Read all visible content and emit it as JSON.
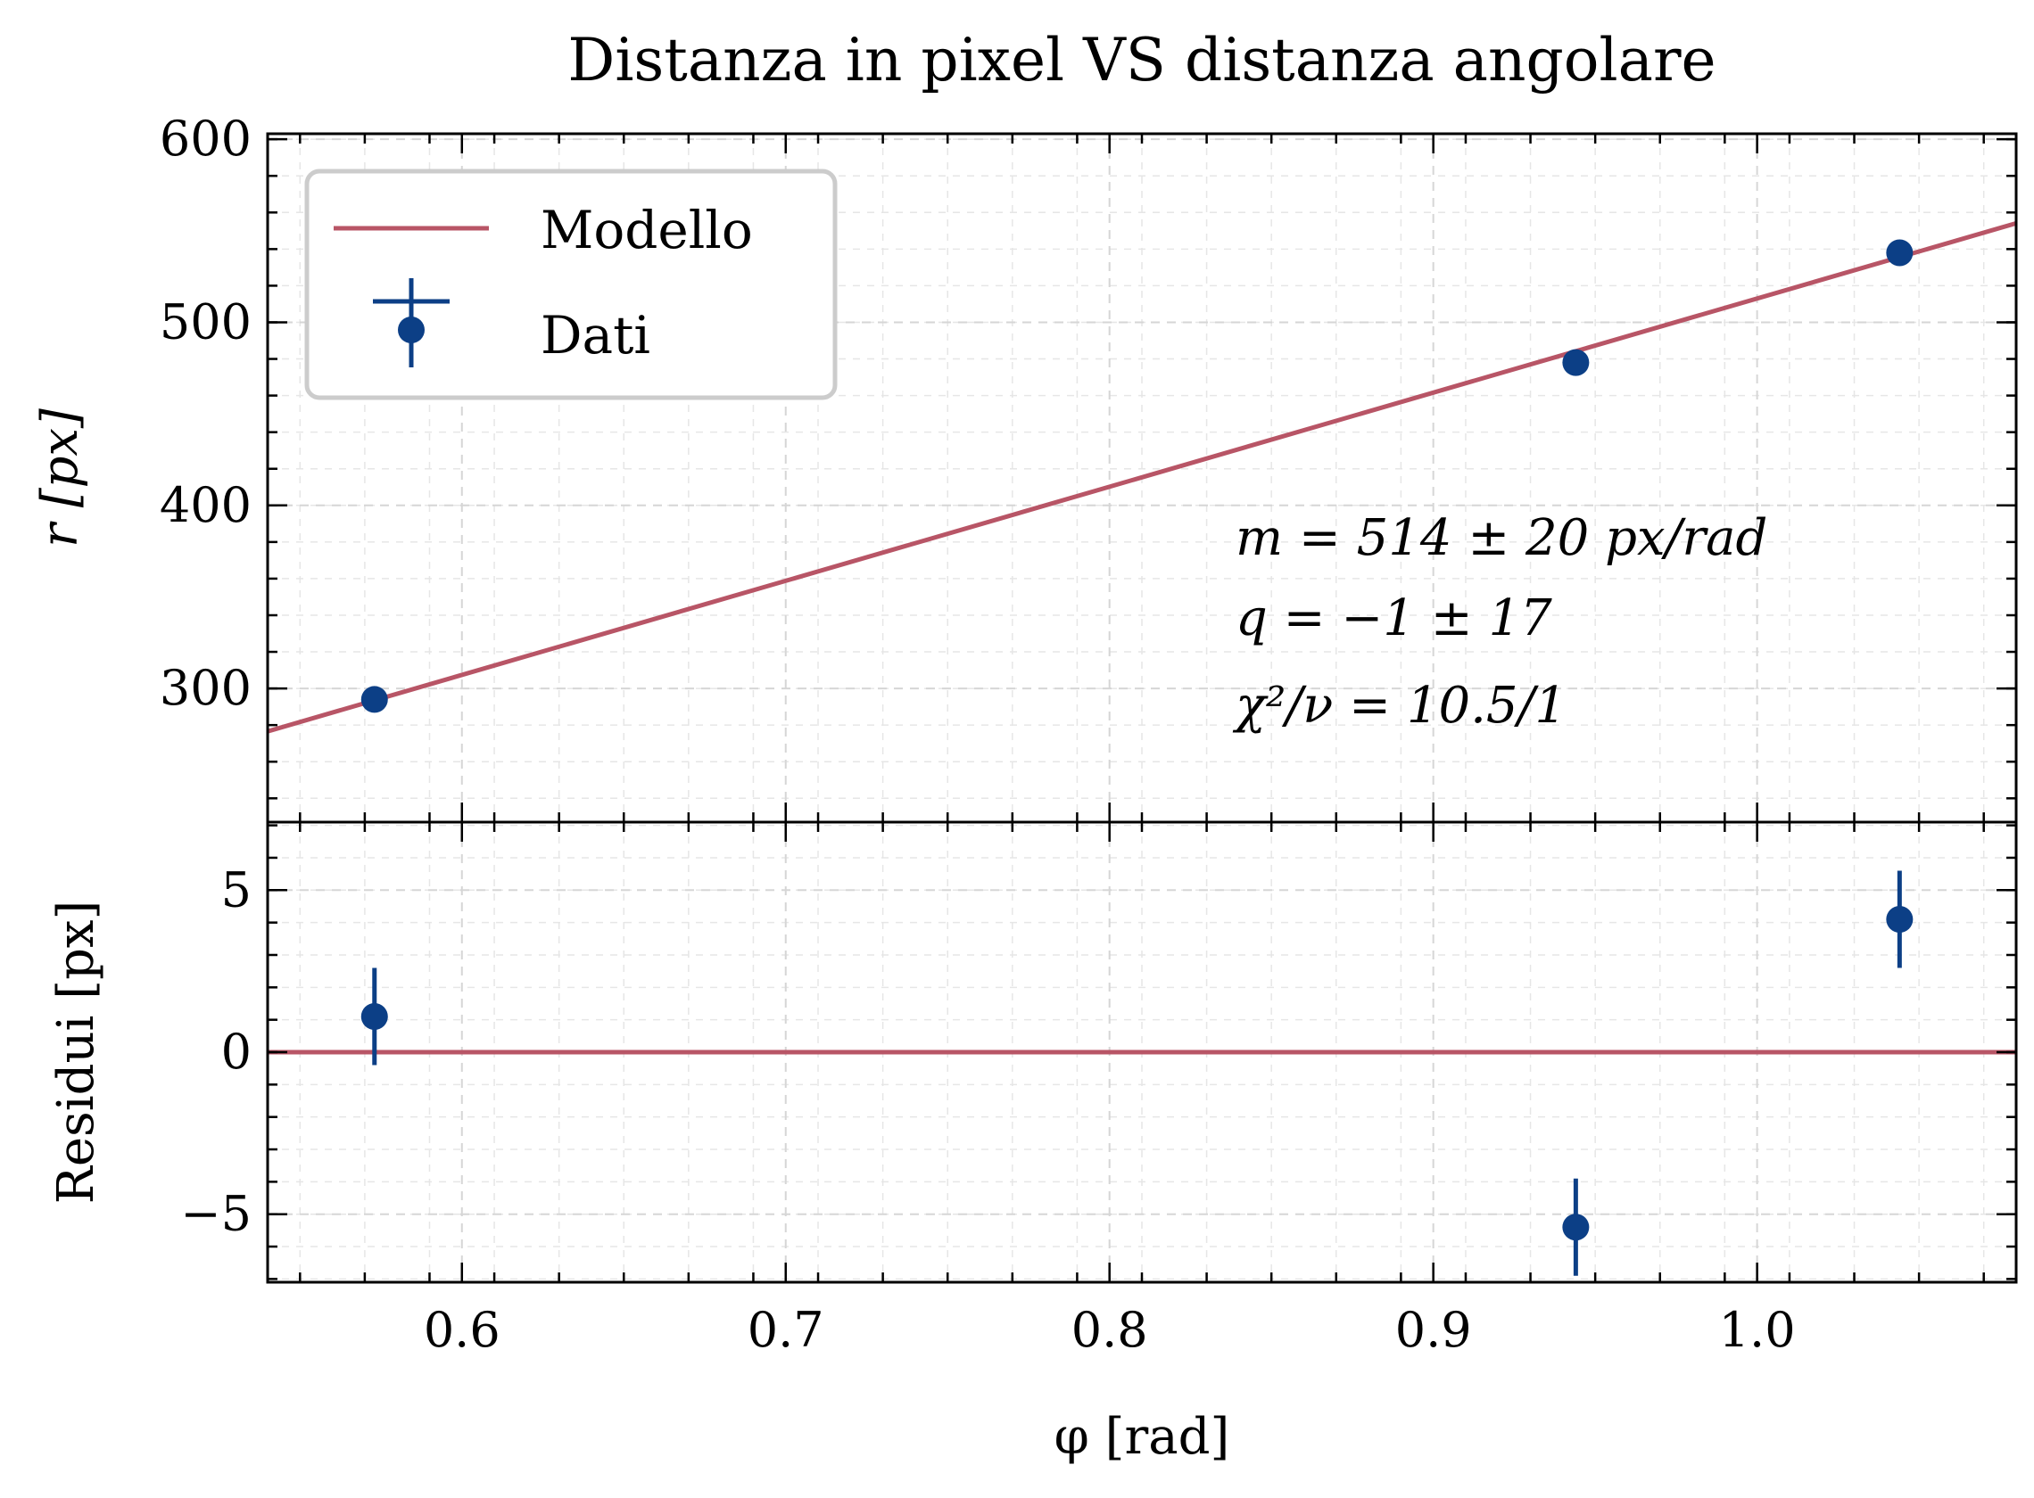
{
  "chart_data": [
    {
      "type": "scatter",
      "panel": "main",
      "title": "Distanza in pixel VS distanza angolare",
      "xlabel": "φ [rad]",
      "ylabel": "r [px]",
      "xlim": [
        0.54,
        1.08
      ],
      "ylim": [
        227,
        603
      ],
      "x_ticks": [
        0.6,
        0.7,
        0.8,
        0.9,
        1.0
      ],
      "x_tick_labels": [
        "0.6",
        "0.7",
        "0.8",
        "0.9",
        "1.0"
      ],
      "y_ticks": [
        300,
        400,
        500,
        600
      ],
      "y_tick_labels": [
        "300",
        "400",
        "500",
        "600"
      ],
      "grid": true,
      "legend": {
        "placement": "top-left",
        "entries": [
          "Modello",
          "Dati"
        ]
      },
      "series": [
        {
          "name": "Dati",
          "kind": "errorbar-points",
          "color": "#0C3F86",
          "x": [
            0.573,
            0.944,
            1.044
          ],
          "y": [
            294,
            478,
            538
          ]
        },
        {
          "name": "Modello",
          "kind": "line",
          "color": "#B85566",
          "slope": 514,
          "intercept": -1
        }
      ],
      "annotations": [
        "m = 514 ± 20 px/rad",
        "q = −1 ± 17",
        "χ²/ν = 10.5/1"
      ]
    },
    {
      "type": "scatter",
      "panel": "residuals",
      "xlabel": "φ [rad]",
      "ylabel": "Residui [px]",
      "xlim": [
        0.54,
        1.08
      ],
      "ylim": [
        -7.1,
        7.1
      ],
      "x_ticks": [
        0.6,
        0.7,
        0.8,
        0.9,
        1.0
      ],
      "x_tick_labels": [
        "0.6",
        "0.7",
        "0.8",
        "0.9",
        "1.0"
      ],
      "y_ticks": [
        -5,
        0,
        5
      ],
      "y_tick_labels": [
        "−5",
        "0",
        "5"
      ],
      "grid": true,
      "series": [
        {
          "kind": "errorbar-points",
          "color": "#0C3F86",
          "x": [
            0.573,
            0.944,
            1.044
          ],
          "y": [
            1.1,
            -5.4,
            4.1
          ],
          "yerr": [
            1.5,
            1.5,
            1.5
          ]
        },
        {
          "kind": "hline",
          "color": "#B85566",
          "y": 0
        }
      ]
    }
  ]
}
